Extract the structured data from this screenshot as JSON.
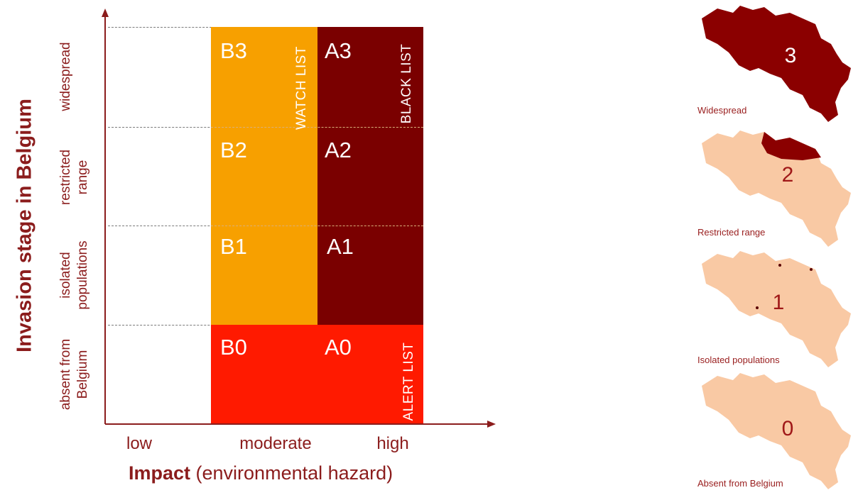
{
  "y_axis": {
    "title": "Invasion stage in Belgium",
    "rows": [
      {
        "label": "widespread"
      },
      {
        "label": "restricted range"
      },
      {
        "label": "isolated populations"
      },
      {
        "label": "absent from Belgium"
      }
    ]
  },
  "x_axis": {
    "title_bold": "Impact",
    "title_rest": " (environmental hazard)",
    "categories": [
      "low",
      "moderate",
      "high"
    ]
  },
  "cells": {
    "B3": "B3",
    "B2": "B2",
    "B1": "B1",
    "B0": "B0",
    "A3": "A3",
    "A2": "A2",
    "A1": "A1",
    "A0": "A0"
  },
  "lists": {
    "watch": "WATCH  LIST",
    "black": "BLACK  LIST",
    "alert": "ALERT LIST"
  },
  "maps": [
    {
      "number": "3",
      "caption": "Widespread"
    },
    {
      "number": "2",
      "caption": "Restricted range"
    },
    {
      "number": "1",
      "caption": "Isolated populations"
    },
    {
      "number": "0",
      "caption": "Absent from Belgium"
    }
  ],
  "colors": {
    "watch_orange": "#f7a000",
    "black_maroon": "#7a0000",
    "alert_red": "#ff1a00",
    "axis": "#8b1c1c",
    "map_light": "#f9c9a4",
    "map_dark": "#8b0000"
  }
}
